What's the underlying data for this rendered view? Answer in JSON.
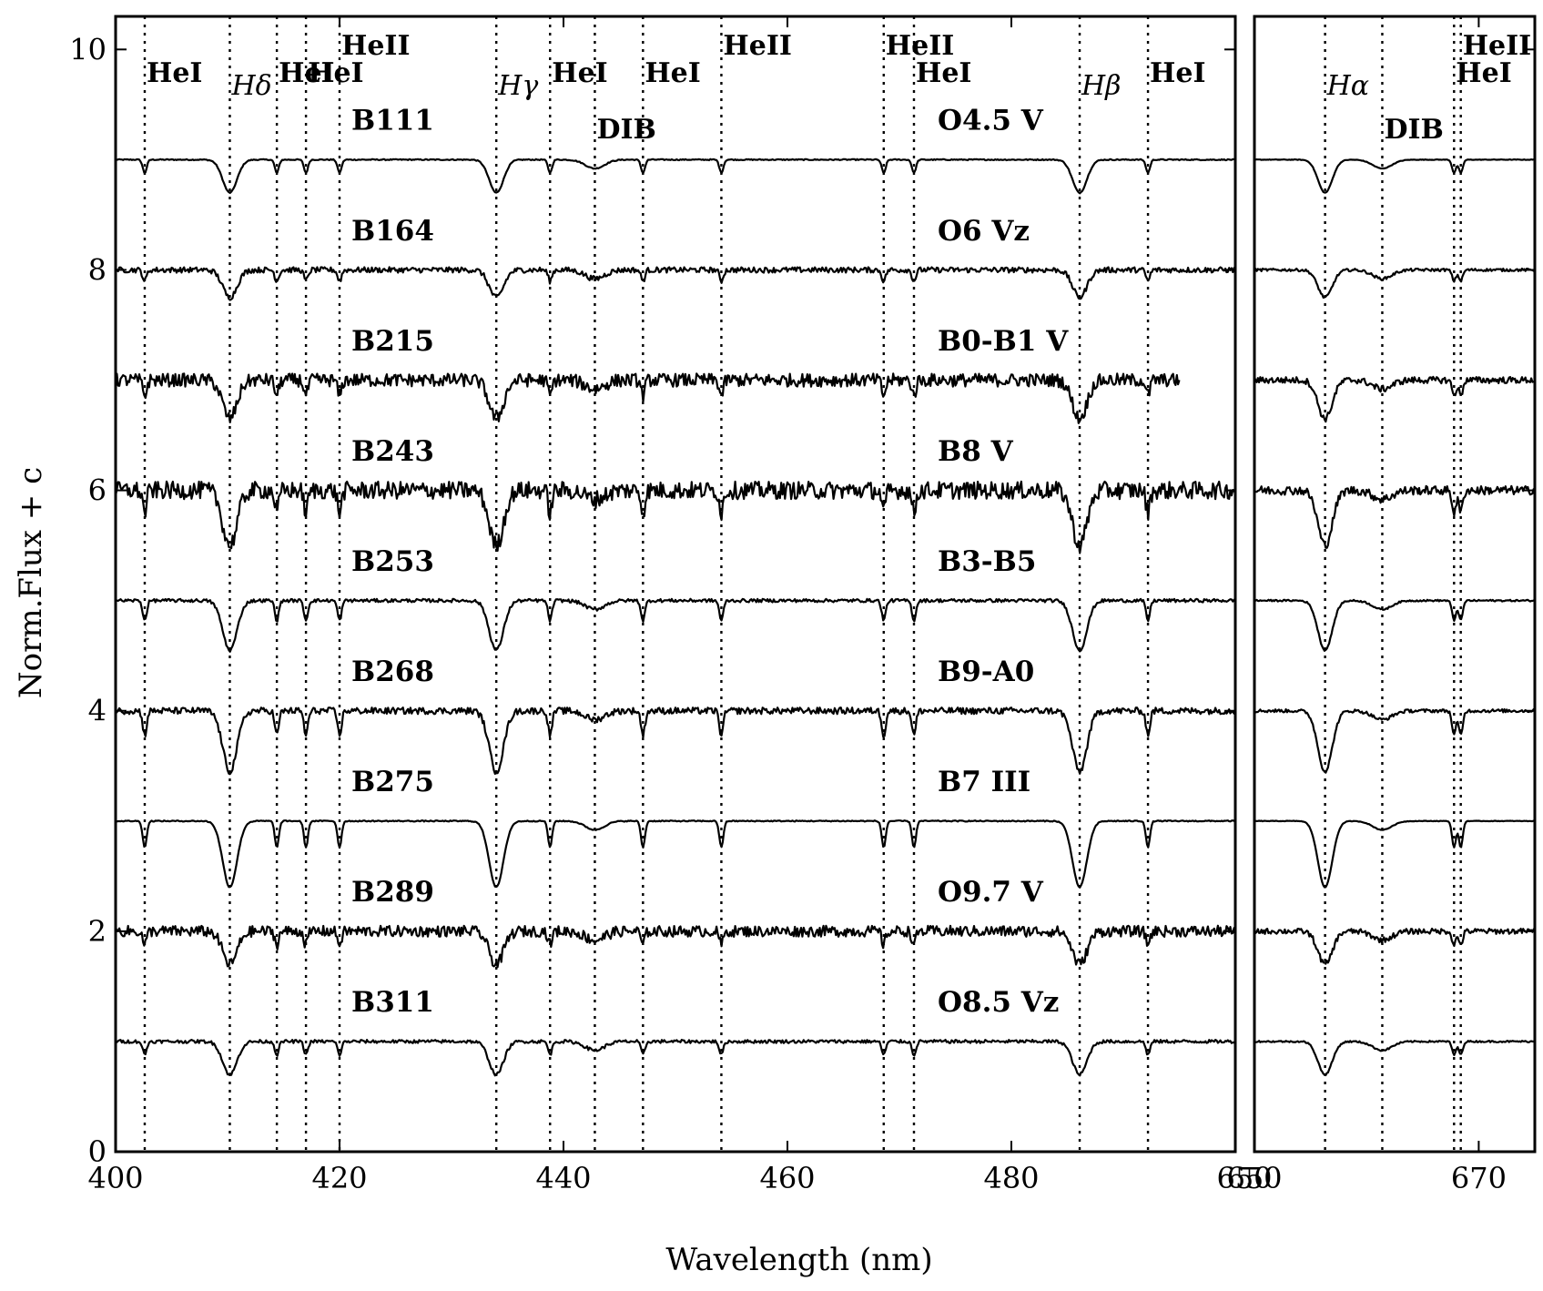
{
  "chart_data": {
    "type": "line",
    "xlabel": "Wavelength (nm)",
    "ylabel": "Norm.Flux + c",
    "ylim": [
      0,
      10.3
    ],
    "yticks": [
      0,
      2,
      4,
      6,
      8,
      10
    ],
    "grid": false,
    "panels": [
      {
        "xlim": [
          400,
          500
        ],
        "xticks": [
          400,
          420,
          440,
          460,
          480
        ]
      },
      {
        "xlim": [
          650,
          675
        ],
        "xticks": [
          650,
          670
        ]
      }
    ],
    "spectral_lines": [
      {
        "label": "HeI",
        "wavelength": 402.6,
        "row": 1,
        "italic": false
      },
      {
        "label": "Hδ",
        "wavelength": 410.2,
        "row": 2,
        "italic": true
      },
      {
        "label": "HeI",
        "wavelength": 414.4,
        "row": 1,
        "italic": false
      },
      {
        "label": "HeI",
        "wavelength": 417.0,
        "row": 1,
        "italic": false
      },
      {
        "label": "HeII",
        "wavelength": 420.0,
        "row": 0,
        "italic": false
      },
      {
        "label": "Hγ",
        "wavelength": 434.0,
        "row": 2,
        "italic": true
      },
      {
        "label": "HeI",
        "wavelength": 438.8,
        "row": 1,
        "italic": false
      },
      {
        "label": "DIB",
        "wavelength": 442.8,
        "row": 3,
        "italic": false
      },
      {
        "label": "HeI",
        "wavelength": 447.1,
        "row": 1,
        "italic": false
      },
      {
        "label": "HeII",
        "wavelength": 454.1,
        "row": 0,
        "italic": false
      },
      {
        "label": "HeII",
        "wavelength": 468.6,
        "row": 0,
        "italic": false
      },
      {
        "label": "HeI",
        "wavelength": 471.3,
        "row": 1,
        "italic": false
      },
      {
        "label": "Hβ",
        "wavelength": 486.1,
        "row": 2,
        "italic": true
      },
      {
        "label": "HeI",
        "wavelength": 492.2,
        "row": 1,
        "italic": false
      },
      {
        "label": "Hα",
        "wavelength": 656.3,
        "row": 2,
        "italic": true
      },
      {
        "label": "DIB",
        "wavelength": 661.4,
        "row": 3,
        "italic": false
      },
      {
        "label": "HeII",
        "wavelength": 668.4,
        "row": 0,
        "italic": false
      },
      {
        "label": "HeI",
        "wavelength": 667.8,
        "row": 1,
        "italic": false
      }
    ],
    "series": [
      {
        "name": "B111",
        "type": "O4.5 V",
        "offset": 9,
        "noise": 0.01,
        "depth": 0.3,
        "end1": 500
      },
      {
        "name": "B164",
        "type": "O6 Vz",
        "offset": 8,
        "noise": 0.05,
        "depth": 0.25,
        "end1": 500
      },
      {
        "name": "B215",
        "type": "B0-B1 V",
        "offset": 7,
        "noise": 0.12,
        "depth": 0.35,
        "end1": 495
      },
      {
        "name": "B243",
        "type": "B8 V",
        "offset": 6,
        "noise": 0.16,
        "depth": 0.5,
        "end1": 500
      },
      {
        "name": "B253",
        "type": "B3-B5",
        "offset": 5,
        "noise": 0.03,
        "depth": 0.45,
        "end1": 500
      },
      {
        "name": "B268",
        "type": "B9-A0",
        "offset": 4,
        "noise": 0.06,
        "depth": 0.55,
        "end1": 500
      },
      {
        "name": "B275",
        "type": "B7 III",
        "offset": 3,
        "noise": 0.01,
        "depth": 0.6,
        "end1": 500
      },
      {
        "name": "B289",
        "type": "O9.7 V",
        "offset": 2,
        "noise": 0.1,
        "depth": 0.3,
        "end1": 500
      },
      {
        "name": "B311",
        "type": "O8.5 Vz",
        "offset": 1,
        "noise": 0.03,
        "depth": 0.3,
        "end1": 500
      }
    ]
  }
}
